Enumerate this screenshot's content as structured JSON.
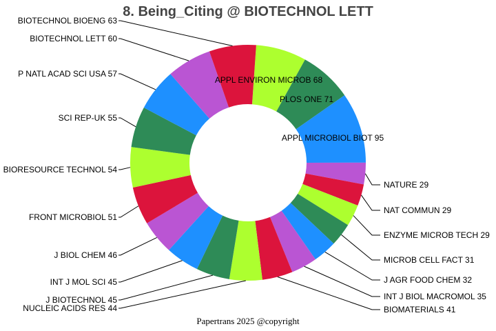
{
  "chart_data": {
    "type": "pie",
    "donut": true,
    "title": "8. Being_Citing @ BIOTECHNOL LETT",
    "footer": "Papertrans 2025 @copyright",
    "slices": [
      {
        "label": "APPL ENVIRON MICROB",
        "value": 68,
        "color": "#ADFF2F"
      },
      {
        "label": "PLOS ONE",
        "value": 71,
        "color": "#2E8B57"
      },
      {
        "label": "APPL MICROBIOL BIOT",
        "value": 95,
        "color": "#1E90FF"
      },
      {
        "label": "NATURE",
        "value": 29,
        "color": "#BA55D3"
      },
      {
        "label": "NAT COMMUN",
        "value": 29,
        "color": "#DC143C"
      },
      {
        "label": "ENZYME MICROB TECH",
        "value": 29,
        "color": "#ADFF2F"
      },
      {
        "label": "MICROB CELL FACT",
        "value": 31,
        "color": "#2E8B57"
      },
      {
        "label": "J AGR FOOD CHEM",
        "value": 32,
        "color": "#1E90FF"
      },
      {
        "label": "INT J BIOL MACROMOL",
        "value": 35,
        "color": "#BA55D3"
      },
      {
        "label": "BIOMATERIALS",
        "value": 41,
        "color": "#DC143C"
      },
      {
        "label": "NUCLEIC ACIDS RES",
        "value": 44,
        "color": "#ADFF2F"
      },
      {
        "label": "J BIOTECHNOL",
        "value": 45,
        "color": "#2E8B57"
      },
      {
        "label": "INT J MOL SCI",
        "value": 45,
        "color": "#1E90FF"
      },
      {
        "label": "J BIOL CHEM",
        "value": 46,
        "color": "#BA55D3"
      },
      {
        "label": "FRONT MICROBIOL",
        "value": 51,
        "color": "#DC143C"
      },
      {
        "label": "BIORESOURCE TECHNOL",
        "value": 54,
        "color": "#ADFF2F"
      },
      {
        "label": "SCI REP-UK",
        "value": 55,
        "color": "#2E8B57"
      },
      {
        "label": "P NATL ACAD SCI USA",
        "value": 57,
        "color": "#1E90FF"
      },
      {
        "label": "BIOTECHNOL LETT",
        "value": 60,
        "color": "#BA55D3"
      },
      {
        "label": "BIOTECHNOL BIOENG",
        "value": 63,
        "color": "#DC143C"
      }
    ]
  }
}
